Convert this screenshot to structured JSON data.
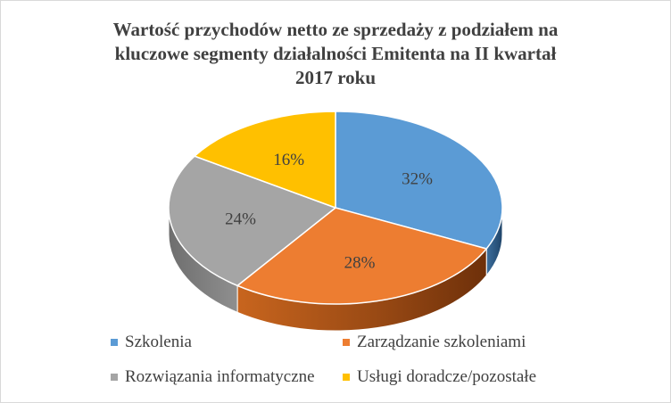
{
  "chart_data": {
    "type": "pie",
    "style": "3d",
    "title_lines": [
      "Wartość przychodów netto ze sprzedaży z podziałem na",
      "kluczowe segmenty działalności Emitenta na II kwartał",
      "2017 roku"
    ],
    "categories": [
      "Szkolenia",
      "Zarządzanie szkoleniami",
      "Rozwiązania informatyczne",
      "Usługi doradcze/pozostałe"
    ],
    "values": [
      32,
      28,
      24,
      16
    ],
    "labels": [
      "32%",
      "28%",
      "24%",
      "16%"
    ],
    "colors": [
      "#5b9bd5",
      "#ed7d31",
      "#a5a5a5",
      "#ffc000"
    ],
    "legend_position": "bottom"
  }
}
